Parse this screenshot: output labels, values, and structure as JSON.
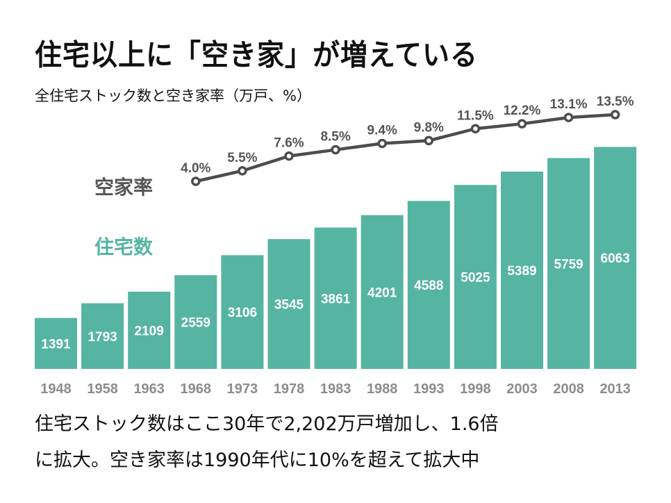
{
  "header": {
    "title": "住宅以上に「空き家」が増えている",
    "subtitle": "全住宅ストック数と空き家率（万戸、%）"
  },
  "legend": {
    "rate_label": "空家率",
    "stock_label": "住宅数"
  },
  "colors": {
    "bar": "#56b4a2",
    "line": "#4d4d4d",
    "rate_text": "#555555",
    "year_text": "#8c8c8c"
  },
  "chart_data": {
    "type": "bar+line",
    "title": "全住宅ストック数と空き家率（万戸、%）",
    "categories": [
      "1948",
      "1958",
      "1963",
      "1968",
      "1973",
      "1978",
      "1983",
      "1988",
      "1993",
      "1998",
      "2003",
      "2008",
      "2013"
    ],
    "series": [
      {
        "name": "住宅数",
        "type": "bar",
        "unit": "万戸",
        "values": [
          1391,
          1793,
          2109,
          2559,
          3106,
          3545,
          3861,
          4201,
          4588,
          5025,
          5389,
          5759,
          6063
        ],
        "labels": [
          "1391",
          "1793",
          "2109",
          "2559",
          "3106",
          "3545",
          "3861",
          "4201",
          "4588",
          "5025",
          "5389",
          "5759",
          "6063"
        ]
      },
      {
        "name": "空家率",
        "type": "line",
        "unit": "%",
        "values": [
          null,
          null,
          null,
          4.0,
          5.5,
          7.6,
          8.5,
          9.4,
          9.8,
          11.5,
          12.2,
          13.1,
          13.5
        ],
        "labels": [
          "",
          "",
          "",
          "4.0%",
          "5.5%",
          "7.6%",
          "8.5%",
          "9.4%",
          "9.8%",
          "11.5%",
          "12.2%",
          "13.1%",
          "13.5%"
        ]
      }
    ],
    "bar_ylim": [
      0,
      6063
    ],
    "line_ylim": [
      0,
      13.5
    ],
    "grid": false,
    "legend": "left"
  },
  "caption": {
    "line1": "住宅ストック数はここ30年で2,202万戸増加し、1.6倍",
    "line2": "に拡大。空き家率は1990年代に10%を超えて拡大中"
  }
}
